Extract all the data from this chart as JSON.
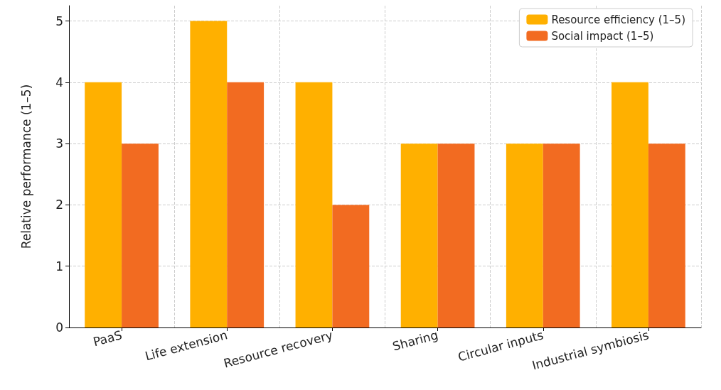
{
  "chart_data": {
    "type": "bar",
    "ylabel": "Relative performance (1–5)",
    "categories": [
      "PaaS",
      "Life extension",
      "Resource recovery",
      "Sharing",
      "Circular inputs",
      "Industrial symbiosis"
    ],
    "series": [
      {
        "name": "Resource efficiency (1–5)",
        "color": "#ffb000",
        "values": [
          4,
          5,
          4,
          3,
          3,
          4
        ]
      },
      {
        "name": "Social impact (1–5)",
        "color": "#f26b21",
        "values": [
          3,
          4,
          2,
          3,
          3,
          3
        ]
      }
    ],
    "ylim": [
      0,
      5.25
    ],
    "yticks": [
      0,
      1,
      2,
      3,
      4,
      5
    ],
    "grid": true,
    "legend": "top right"
  }
}
